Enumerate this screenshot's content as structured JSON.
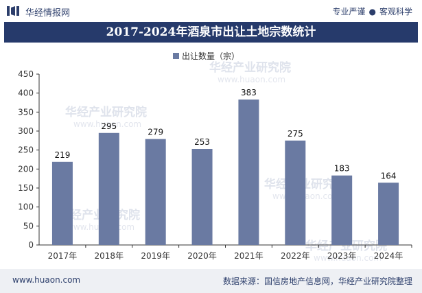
{
  "header": {
    "brand": "华经情报网",
    "tag_left": "专业严谨",
    "tag_sep": "●",
    "tag_right": "客观科学"
  },
  "watermark": {
    "brand_text": "华经产业研究院",
    "url_text": "www.huaon.com"
  },
  "footer": {
    "site": "www.huaon.com",
    "source": "数据来源：国信房地产信息网，华经产业研究院整理"
  },
  "colors": {
    "bar": "#6a7aa2",
    "title_bg": "#263a6b",
    "accent": "#2c3e6b"
  },
  "chart_data": {
    "type": "bar",
    "title": "2017-2024年酒泉市出让土地宗数统计",
    "legend": "出让数量（宗）",
    "legend_position": "top-center",
    "categories": [
      "2017年",
      "2018年",
      "2019年",
      "2020年",
      "2021年",
      "2022年",
      "2023年",
      "2024年"
    ],
    "values": [
      219,
      295,
      279,
      253,
      383,
      275,
      183,
      164
    ],
    "ylim": [
      0,
      450
    ],
    "yticks": [
      0,
      50,
      100,
      150,
      200,
      250,
      300,
      350,
      400,
      450
    ],
    "xlabel": "",
    "ylabel": "",
    "grid": false
  }
}
